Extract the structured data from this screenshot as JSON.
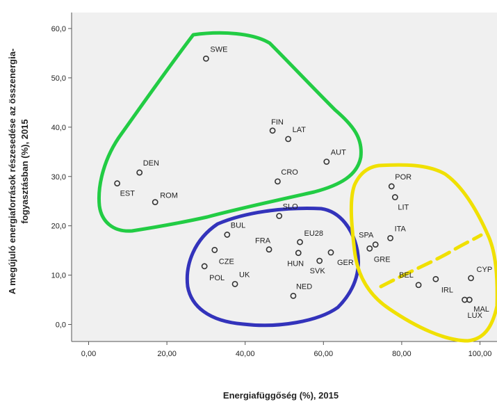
{
  "chart_data": {
    "type": "scatter",
    "xlabel": "Energiafüggőség (%), 2015",
    "ylabel_line1": "A megújuló energiaforrások részesedése az összenergia-",
    "ylabel_line2": "fogyasztásban (%), 2015",
    "xlim": [
      -5,
      105
    ],
    "ylim": [
      -3,
      63
    ],
    "x_ticks": [
      0,
      20,
      40,
      60,
      80,
      100
    ],
    "x_tick_labels": [
      "0,00",
      "20,00",
      "40,00",
      "60,00",
      "80,00",
      "100,00"
    ],
    "y_ticks": [
      0,
      10,
      20,
      30,
      40,
      50,
      60
    ],
    "y_tick_labels": [
      "0,0",
      "10,0",
      "20,0",
      "30,0",
      "40,0",
      "50,0",
      "60,0"
    ],
    "grid": false,
    "colors": {
      "plot_background": "#f0f0f0",
      "marker_stroke": "#333333",
      "green_cluster": "#22cc44",
      "blue_cluster": "#3333bb",
      "yellow_cluster": "#f0e000"
    },
    "points": [
      {
        "label": "SWE",
        "x": 30.0,
        "y": 53.9
      },
      {
        "label": "FIN",
        "x": 47.0,
        "y": 39.3
      },
      {
        "label": "LAT",
        "x": 51.0,
        "y": 37.6
      },
      {
        "label": "AUT",
        "x": 60.8,
        "y": 33.0
      },
      {
        "label": "DEN",
        "x": 13.0,
        "y": 30.8
      },
      {
        "label": "EST",
        "x": 7.3,
        "y": 28.6
      },
      {
        "label": "ROM",
        "x": 17.0,
        "y": 24.8
      },
      {
        "label": "CRO",
        "x": 48.3,
        "y": 29.0
      },
      {
        "label": "SLO",
        "x": 48.7,
        "y": 22.0
      },
      {
        "label": "BUL",
        "x": 35.4,
        "y": 18.2
      },
      {
        "label": "FRA",
        "x": 46.1,
        "y": 15.2
      },
      {
        "label": "EU28",
        "x": 54.0,
        "y": 16.7
      },
      {
        "label": "CZE",
        "x": 32.2,
        "y": 15.1
      },
      {
        "label": "HUN",
        "x": 53.6,
        "y": 14.5
      },
      {
        "label": "SVK",
        "x": 59.0,
        "y": 12.9
      },
      {
        "label": "GER",
        "x": 61.9,
        "y": 14.6
      },
      {
        "label": "POL",
        "x": 29.6,
        "y": 11.8
      },
      {
        "label": "UK",
        "x": 37.4,
        "y": 8.2
      },
      {
        "label": "NED",
        "x": 52.3,
        "y": 5.8
      },
      {
        "label": "POR",
        "x": 77.4,
        "y": 28.0
      },
      {
        "label": "LIT",
        "x": 78.3,
        "y": 25.8
      },
      {
        "label": "SPA",
        "x": 73.3,
        "y": 16.2
      },
      {
        "label": "ITA",
        "x": 77.1,
        "y": 17.5
      },
      {
        "label": "GRE",
        "x": 71.8,
        "y": 15.4
      },
      {
        "label": "BEL",
        "x": 84.3,
        "y": 8.0
      },
      {
        "label": "IRL",
        "x": 88.7,
        "y": 9.2
      },
      {
        "label": "CYP",
        "x": 97.7,
        "y": 9.4
      },
      {
        "label": "MAL",
        "x": 97.3,
        "y": 5.0
      },
      {
        "label": "LUX",
        "x": 96.1,
        "y": 5.0
      }
    ]
  }
}
